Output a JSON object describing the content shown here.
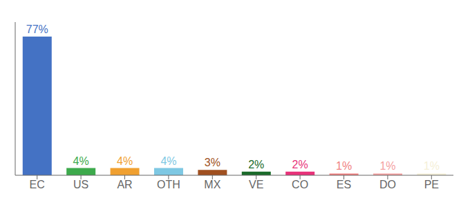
{
  "chart_data": {
    "type": "bar",
    "categories": [
      "EC",
      "US",
      "AR",
      "OTH",
      "MX",
      "VE",
      "CO",
      "ES",
      "DO",
      "PE"
    ],
    "values": [
      77,
      4,
      4,
      4,
      3,
      2,
      2,
      1,
      1,
      1
    ],
    "value_labels": [
      "77%",
      "4%",
      "4%",
      "4%",
      "3%",
      "2%",
      "2%",
      "1%",
      "1%",
      "1%"
    ],
    "colors": [
      "#4472C4",
      "#3DAA4C",
      "#F0A030",
      "#7EC8E3",
      "#A05020",
      "#1A6B2A",
      "#E8327A",
      "#F08080",
      "#F4A0A0",
      "#F5F0D8"
    ],
    "ylim": [
      0,
      85
    ],
    "data_labels": true,
    "tick_labels": "x",
    "grid": false
  }
}
